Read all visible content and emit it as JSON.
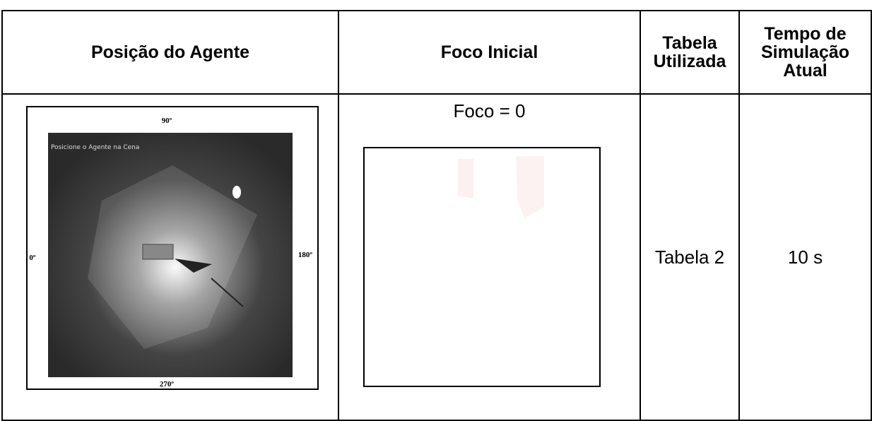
{
  "table": {
    "header": [
      "Posição do Agente",
      "Foco Inicial",
      "Tabela Utilizada",
      "Tempo de Simulação Atual"
    ],
    "row": {
      "scene": {
        "top": "90º",
        "caption": "Posicione o Agente na Cena",
        "left": "0º",
        "right": "180º",
        "bottom": "270º"
      },
      "focus": "Foco = 0",
      "table_used": "Tabela 2",
      "time": "10 s"
    }
  }
}
